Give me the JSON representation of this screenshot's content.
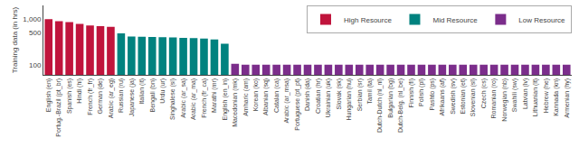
{
  "chart_data": {
    "type": "bar",
    "categories": [
      "English (en)",
      "Portug.-Brazil (pt_br)",
      "Spanish (es)",
      "Hindi (hi)",
      "French (fr_fr)",
      "German (de)",
      "Arabic (ar_eg)",
      "Russian (ru)",
      "Japanese (ja)",
      "Italian (it)",
      "Bengali (bn)",
      "Urdu (ur)",
      "Singhalese (si)",
      "Arabic (ar_sa)",
      "Arabic (ar_ma)",
      "French (fr_ca)",
      "Marathi (mr)",
      "English (en_in)",
      "Macedonian (mk)",
      "Amharic (am)",
      "Korean (ko)",
      "Albanian (sq)",
      "Catalan (ca)",
      "Arabic (ar_msa)",
      "Portuguese (pt_pt)",
      "Danish (da)",
      "Croatian (hr)",
      "Ukrainian (uk)",
      "Slovak (sk)",
      "Hungarian (hu)",
      "Serbian (sr)",
      "Tamil (ta)",
      "Dutch-Dutch (nl_nl)",
      "Bulgarian (bg)",
      "Dutch-Belg. (nl_be)",
      "Finnish (fi)",
      "Polish (pl)",
      "Pashto (ps)",
      "Afrikaans (af)",
      "Swedish (sv)",
      "Estonian (et)",
      "Slovenian (sl)",
      "Czech (cs)",
      "Romanian (ro)",
      "Norwegian (nb)",
      "Swahili (sw)",
      "Latvian (lv)",
      "Lithuanian (lt)",
      "Hebrew (he)",
      "Kannada (kn)",
      "Armenian (hy)"
    ],
    "series": [
      {
        "name": "High Resource",
        "color": "#c0143c",
        "values": [
          1000,
          900,
          860,
          790,
          730,
          700,
          680,
          null,
          null,
          null,
          null,
          null,
          null,
          null,
          null,
          null,
          null,
          null,
          null,
          null,
          null,
          null,
          null,
          null,
          null,
          null,
          null,
          null,
          null,
          null,
          null,
          null,
          null,
          null,
          null,
          null,
          null,
          null,
          null,
          null,
          null,
          null,
          null,
          null,
          null,
          null,
          null,
          null,
          null,
          null,
          null
        ]
      },
      {
        "name": "Mid Resource",
        "color": "#00827f",
        "values": [
          null,
          null,
          null,
          null,
          null,
          null,
          null,
          490,
          415,
          410,
          405,
          400,
          395,
          390,
          385,
          375,
          360,
          290,
          null,
          null,
          null,
          null,
          null,
          null,
          null,
          null,
          null,
          null,
          null,
          null,
          null,
          null,
          null,
          null,
          null,
          null,
          null,
          null,
          null,
          null,
          null,
          null,
          null,
          null,
          null,
          null,
          null,
          null,
          null,
          null,
          null
        ]
      },
      {
        "name": "Low Resource",
        "color": "#7b2d8b",
        "values": [
          null,
          null,
          null,
          null,
          null,
          null,
          null,
          null,
          null,
          null,
          null,
          null,
          null,
          null,
          null,
          null,
          null,
          null,
          105,
          100,
          100,
          100,
          100,
          100,
          100,
          100,
          100,
          100,
          100,
          100,
          100,
          100,
          100,
          100,
          100,
          100,
          100,
          100,
          100,
          100,
          100,
          100,
          100,
          100,
          100,
          100,
          100,
          100,
          100,
          100,
          100
        ]
      }
    ],
    "ylabel": "Training data (in hrs)",
    "log": "y",
    "ylim": [
      60,
      2000
    ],
    "yticks": [
      100,
      500,
      {
        "value": 1000,
        "label": "1,000"
      }
    ],
    "grid": false,
    "legend": "upper right"
  }
}
